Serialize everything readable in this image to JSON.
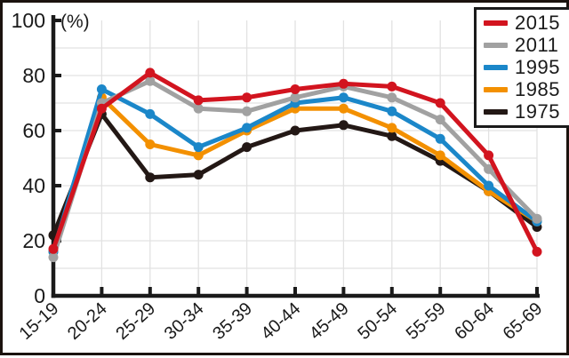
{
  "figure": {
    "unit_label": "(%)"
  },
  "chart_data": {
    "type": "line",
    "title": "",
    "xlabel": "",
    "ylabel": "(%)",
    "categories": [
      "15-19",
      "20-24",
      "25-29",
      "30-34",
      "35-39",
      "40-44",
      "45-49",
      "50-54",
      "55-59",
      "60-64",
      "65-69"
    ],
    "series": [
      {
        "name": "2015",
        "color": "#d2141f",
        "values": [
          17,
          68,
          81,
          71,
          72,
          75,
          77,
          76,
          70,
          51,
          16
        ]
      },
      {
        "name": "2011",
        "color": "#a1a1a1",
        "values": [
          14,
          70,
          78,
          68,
          67,
          72,
          76,
          72,
          64,
          46,
          28
        ]
      },
      {
        "name": "1995",
        "color": "#1b87c9",
        "values": [
          16,
          75,
          66,
          54,
          61,
          70,
          72,
          67,
          57,
          40,
          27
        ]
      },
      {
        "name": "1985",
        "color": "#f39000",
        "values": [
          16,
          72,
          55,
          51,
          60,
          68,
          68,
          61,
          51,
          38,
          27
        ]
      },
      {
        "name": "1975",
        "color": "#231815",
        "values": [
          22,
          66,
          43,
          44,
          54,
          60,
          62,
          58,
          49,
          38,
          25
        ]
      }
    ],
    "ylim": [
      0,
      100
    ],
    "ytick_step": 20,
    "grid_step": 10,
    "grid": true,
    "legend_position": "top-right",
    "axis_color": "#1a1a1a",
    "grid_color": "#e2e2e2"
  }
}
